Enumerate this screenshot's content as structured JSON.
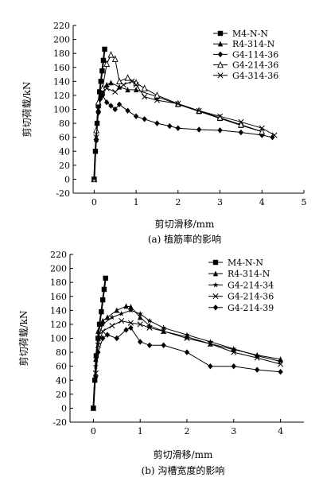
{
  "chart_data": [
    {
      "type": "line",
      "caption": "(a) 植筋率的影响",
      "xlabel": "剪切滑移/mm",
      "ylabel": "剪切荷载/kN",
      "xlim": [
        -0.5,
        5
      ],
      "ylim": [
        -20,
        220
      ],
      "xticks": [
        "0",
        "1",
        "2",
        "3",
        "4",
        "5"
      ],
      "yticks": [
        "-20",
        "0",
        "20",
        "40",
        "60",
        "80",
        "100",
        "120",
        "140",
        "160",
        "180",
        "200",
        "220"
      ],
      "legend_position": "top-right",
      "series": [
        {
          "name": "M4-N-N",
          "marker": "square",
          "x": [
            0,
            0.03,
            0.07,
            0.1,
            0.13,
            0.16,
            0.19,
            0.22,
            0.25
          ],
          "y": [
            0,
            40,
            80,
            105,
            125,
            140,
            155,
            170,
            186
          ]
        },
        {
          "name": "R4-314-N",
          "marker": "triangle",
          "x": [
            0,
            0.05,
            0.1,
            0.15,
            0.2,
            0.3,
            0.4,
            0.6,
            0.8,
            1.0,
            1.5,
            2.0,
            2.5,
            3.0,
            3.5,
            4.0
          ],
          "y": [
            0,
            60,
            100,
            120,
            127,
            135,
            138,
            132,
            128,
            128,
            118,
            107,
            97,
            87,
            77,
            68
          ]
        },
        {
          "name": "G4-114-36",
          "marker": "diamond",
          "x": [
            0,
            0.05,
            0.1,
            0.15,
            0.2,
            0.3,
            0.4,
            0.5,
            0.6,
            0.8,
            1.0,
            1.2,
            1.5,
            1.8,
            2.0,
            2.5,
            3.0,
            3.5,
            4.0,
            4.25
          ],
          "y": [
            0,
            55,
            95,
            115,
            120,
            110,
            105,
            100,
            107,
            98,
            90,
            86,
            80,
            76,
            73,
            71,
            70,
            67,
            63,
            60
          ]
        },
        {
          "name": "G4-214-36",
          "marker": "triangle-open",
          "x": [
            0,
            0.05,
            0.1,
            0.2,
            0.3,
            0.4,
            0.5,
            0.6,
            0.8,
            1.0,
            1.2,
            1.5,
            2.0,
            2.5,
            3.0,
            3.5,
            4.0
          ],
          "y": [
            0,
            70,
            110,
            130,
            165,
            178,
            172,
            140,
            145,
            138,
            130,
            120,
            108,
            98,
            88,
            78,
            68
          ]
        },
        {
          "name": "G4-314-36",
          "marker": "x",
          "x": [
            0,
            0.05,
            0.1,
            0.2,
            0.3,
            0.5,
            0.7,
            0.9,
            1.0,
            1.2,
            1.5,
            2.0,
            2.5,
            3.0,
            3.5,
            4.0,
            4.3
          ],
          "y": [
            0,
            60,
            100,
            125,
            130,
            125,
            135,
            140,
            135,
            118,
            113,
            108,
            98,
            90,
            82,
            73,
            63
          ]
        }
      ]
    },
    {
      "type": "line",
      "caption": "(b) 沟槽宽度的影响",
      "xlabel": "剪切滑移/mm",
      "ylabel": "剪切荷载/kN",
      "xlim": [
        -0.5,
        4.5
      ],
      "ylim": [
        -20,
        220
      ],
      "xticks": [
        "0",
        "1",
        "2",
        "3",
        "4"
      ],
      "yticks": [
        "-20",
        "0",
        "20",
        "40",
        "60",
        "80",
        "100",
        "120",
        "140",
        "160",
        "180",
        "200",
        "220"
      ],
      "legend_position": "top-right",
      "series": [
        {
          "name": "M4-N-N",
          "marker": "square",
          "x": [
            0,
            0.03,
            0.06,
            0.1,
            0.13,
            0.17,
            0.2,
            0.23,
            0.26
          ],
          "y": [
            0,
            40,
            75,
            100,
            120,
            138,
            155,
            170,
            186
          ]
        },
        {
          "name": "R4-314-N",
          "marker": "triangle",
          "x": [
            0,
            0.05,
            0.1,
            0.2,
            0.3,
            0.5,
            0.7,
            0.8,
            1.0,
            1.2,
            1.5,
            2.0,
            2.5,
            3.0,
            3.5,
            4.0
          ],
          "y": [
            0,
            70,
            110,
            125,
            130,
            140,
            146,
            145,
            130,
            118,
            110,
            102,
            92,
            84,
            76,
            70
          ]
        },
        {
          "name": "G4-214-34",
          "marker": "star",
          "x": [
            0,
            0.05,
            0.1,
            0.2,
            0.4,
            0.6,
            0.8,
            1.0,
            1.2,
            1.5,
            2.0,
            2.5,
            3.0,
            3.5,
            4.0
          ],
          "y": [
            0,
            60,
            100,
            120,
            130,
            135,
            140,
            135,
            125,
            115,
            105,
            95,
            85,
            75,
            67
          ]
        },
        {
          "name": "G4-214-36",
          "marker": "x",
          "x": [
            0,
            0.05,
            0.1,
            0.2,
            0.4,
            0.6,
            0.8,
            1.0,
            1.2,
            1.5,
            2.0,
            2.5,
            3.0,
            3.5,
            4.0
          ],
          "y": [
            0,
            50,
            90,
            110,
            118,
            125,
            122,
            120,
            115,
            110,
            100,
            92,
            80,
            72,
            63
          ]
        },
        {
          "name": "G4-214-39",
          "marker": "diamond",
          "x": [
            0,
            0.05,
            0.1,
            0.2,
            0.3,
            0.5,
            0.7,
            0.8,
            1.0,
            1.2,
            1.5,
            2.0,
            2.5,
            3.0,
            3.5,
            4.0
          ],
          "y": [
            0,
            45,
            80,
            100,
            105,
            100,
            112,
            115,
            95,
            90,
            90,
            80,
            60,
            60,
            55,
            52
          ]
        }
      ]
    }
  ]
}
